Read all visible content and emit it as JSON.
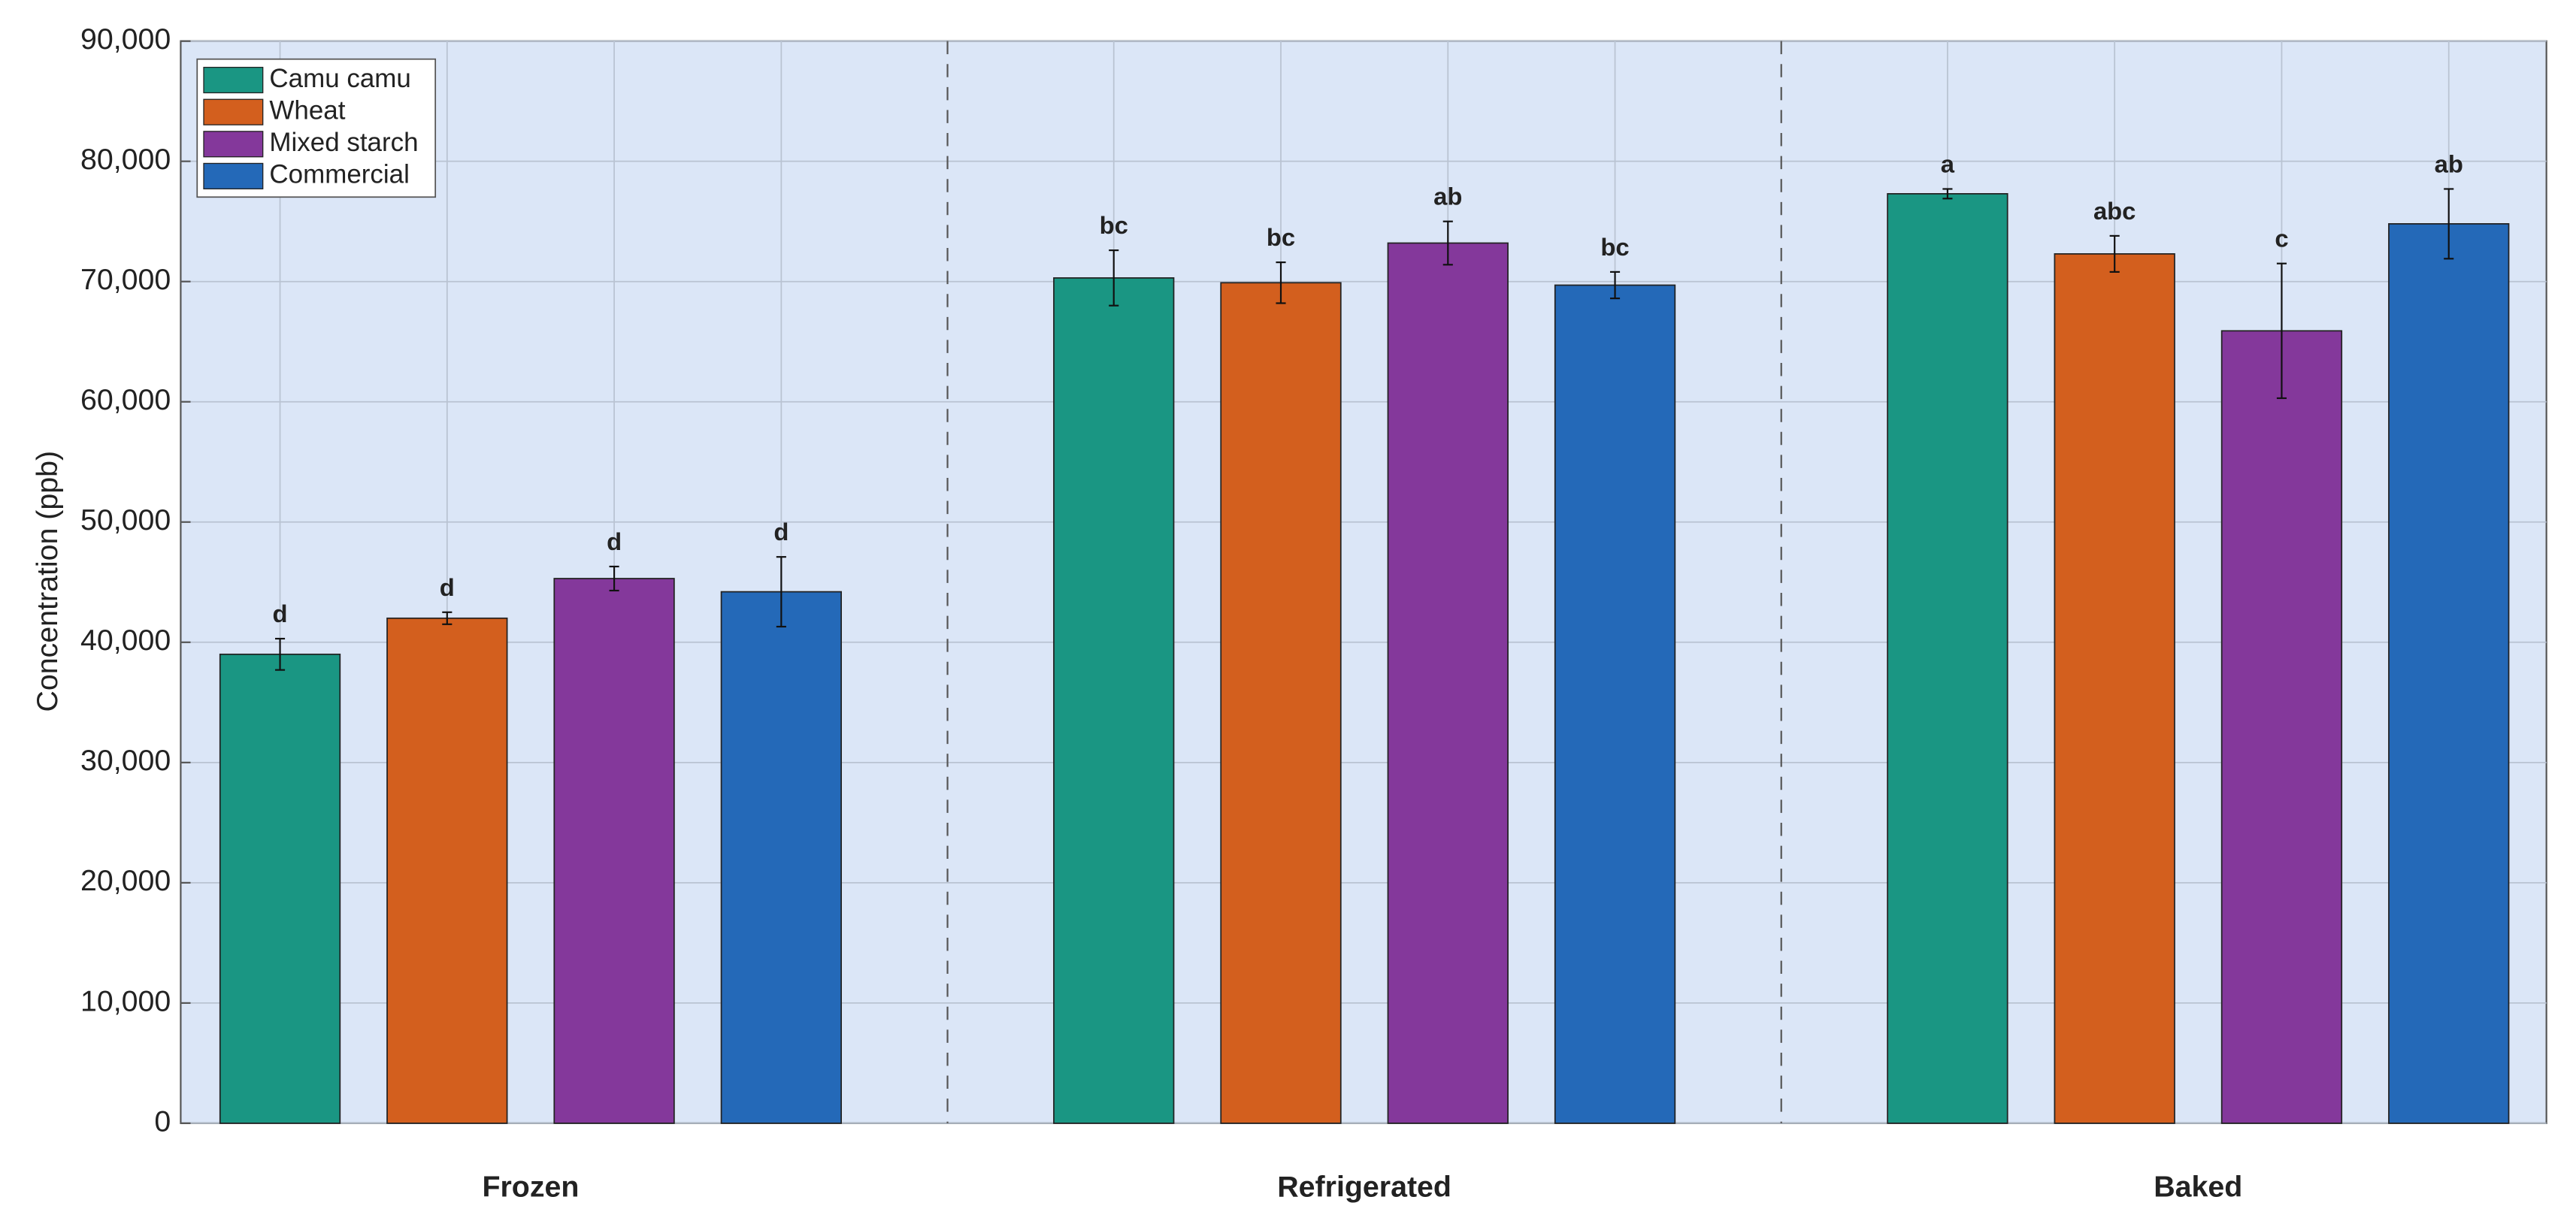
{
  "chart_data": {
    "type": "bar",
    "ylabel": "Concentration (ppb)",
    "categories": [
      "Frozen",
      "Refrigerated",
      "Baked"
    ],
    "ylim": [
      0,
      90000
    ],
    "yticks": [
      0,
      {
        "value": 10000,
        "label": "10,000"
      },
      {
        "value": 20000,
        "label": "20,000"
      },
      {
        "value": 30000,
        "label": "30,000"
      },
      {
        "value": 40000,
        "label": "40,000"
      },
      {
        "value": 50000,
        "label": "50,000"
      },
      {
        "value": 60000,
        "label": "60,000"
      },
      {
        "value": 70000,
        "label": "70,000"
      },
      {
        "value": 80000,
        "label": "80,000"
      },
      {
        "value": 90000,
        "label": "90,000"
      }
    ],
    "grid": true,
    "legend": "top-left",
    "series": [
      {
        "name": "Camu camu",
        "color": "#1a9683",
        "values": [
          39000,
          70300,
          77300
        ],
        "errors": [
          1300,
          2300,
          400
        ],
        "annotations": [
          "d",
          "bc",
          "a"
        ]
      },
      {
        "name": "Wheat",
        "color": "#d35f1e",
        "values": [
          42000,
          69900,
          72300
        ],
        "errors": [
          500,
          1700,
          1500
        ],
        "annotations": [
          "d",
          "bc",
          "abc"
        ]
      },
      {
        "name": "Mixed starch",
        "color": "#84389b",
        "values": [
          45300,
          73200,
          65900
        ],
        "errors": [
          1000,
          1800,
          5600
        ],
        "annotations": [
          "d",
          "ab",
          "c"
        ]
      },
      {
        "name": "Commercial",
        "color": "#2469b8",
        "values": [
          44200,
          69700,
          74800
        ],
        "errors": [
          2900,
          1100,
          2900
        ],
        "annotations": [
          "d",
          "bc",
          "ab"
        ]
      }
    ]
  }
}
